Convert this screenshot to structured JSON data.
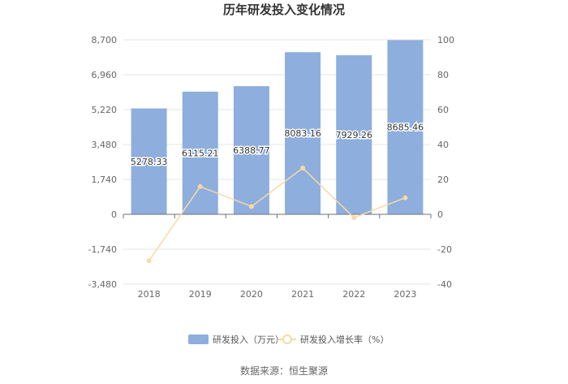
{
  "chart_data": {
    "type": "bar",
    "title": "历年研发投入变化情况",
    "categories": [
      "2018",
      "2019",
      "2020",
      "2021",
      "2022",
      "2023"
    ],
    "series": [
      {
        "name": "研发投入（万元）",
        "type": "bar",
        "axis": "left",
        "color": "#8eaedd",
        "values": [
          5278.33,
          6115.21,
          6388.77,
          8083.16,
          7929.26,
          8685.46
        ],
        "labels": [
          "5278.33",
          "6115.21",
          "6388.77",
          "8083.16",
          "7929.26",
          "8685.46"
        ]
      },
      {
        "name": "研发投入增长率（%）",
        "type": "line",
        "axis": "right",
        "color": "#f9d9a3",
        "values": [
          -26.6,
          15.9,
          4.5,
          26.5,
          -1.9,
          9.5
        ]
      }
    ],
    "left_axis": {
      "ylim": [
        -3480,
        8700
      ],
      "ticks": [
        8700,
        6960,
        5220,
        3480,
        1740,
        0,
        -1740,
        -3480
      ],
      "tick_labels": [
        "8,700",
        "6,960",
        "5,220",
        "3,480",
        "1,740",
        "0",
        "-1,740",
        "-3,480"
      ]
    },
    "right_axis": {
      "ylim": [
        -40,
        100
      ],
      "ticks": [
        100,
        80,
        60,
        40,
        20,
        0,
        -20,
        -40
      ],
      "tick_labels": [
        "100",
        "80",
        "60",
        "40",
        "20",
        "0",
        "-20",
        "-40"
      ]
    },
    "grid": true,
    "legend_position": "bottom",
    "source": "数据来源：恒生聚源"
  }
}
